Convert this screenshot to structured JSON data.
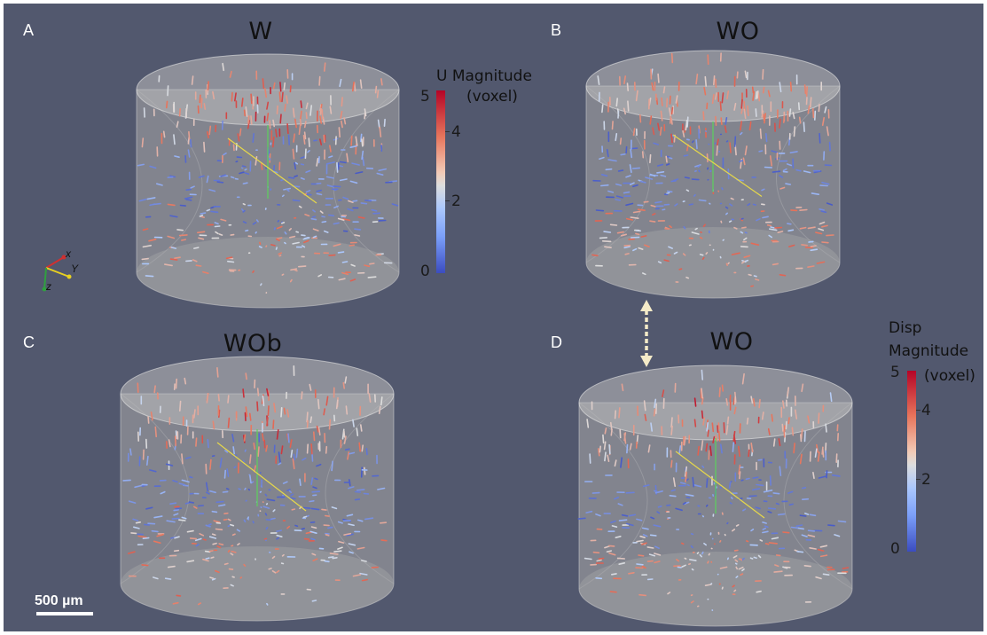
{
  "panels": [
    {
      "letter": "A",
      "title": "W"
    },
    {
      "letter": "B",
      "title": "WO"
    },
    {
      "letter": "C",
      "title": "WOb"
    },
    {
      "letter": "D",
      "title": "WO"
    }
  ],
  "colorbar_top": {
    "title_line1": "U Magnitude",
    "title_line2": "(voxel)",
    "ticks": [
      "5",
      "4",
      "2",
      "0"
    ]
  },
  "colorbar_bottom": {
    "title_line1": "Disp",
    "title_line2": "Magnitude",
    "title_line3": "(voxel)",
    "ticks": [
      "5",
      "4",
      "2",
      "0"
    ]
  },
  "scale_bar": {
    "label": "500 µm"
  },
  "axes_triad": {
    "x": "x",
    "y": "Y",
    "z": "z"
  },
  "colors": {
    "background": "#52586e",
    "low": "#3b4cc0",
    "mid": "#dddddd",
    "high": "#b40426",
    "compare_arrow": "#f5ebc8"
  }
}
